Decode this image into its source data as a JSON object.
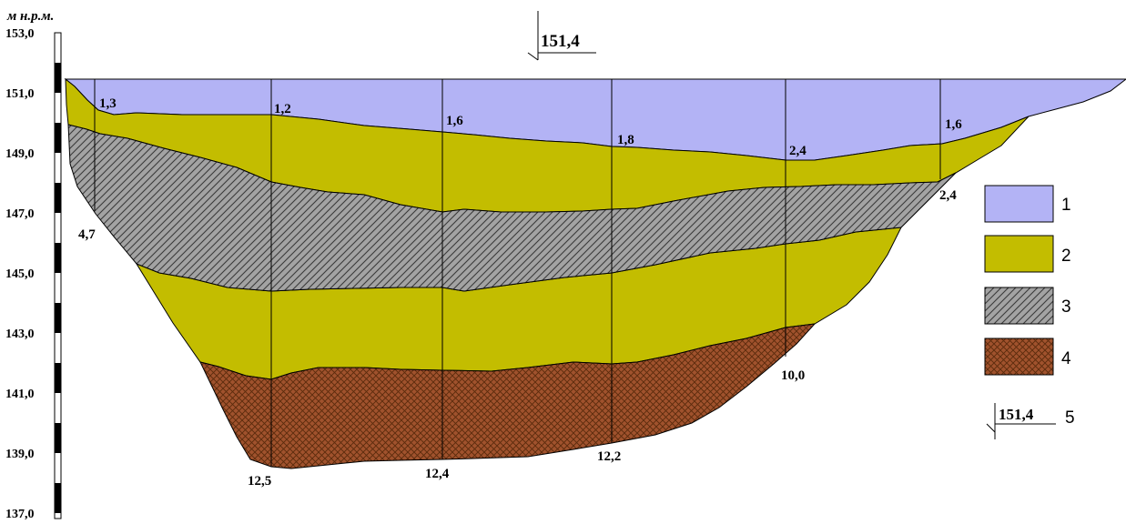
{
  "axis": {
    "unit": "м н.р.м.",
    "ticks": [
      "153,0",
      "151,0",
      "149,0",
      "147,0",
      "145,0",
      "143,0",
      "141,0",
      "139,0",
      "137,0"
    ]
  },
  "water_level": {
    "label": "151,4"
  },
  "verticals": [
    {
      "top_label": "1,3",
      "bottom_label": "4,7"
    },
    {
      "top_label": "1,2",
      "bottom_label": "12,5"
    },
    {
      "top_label": "1,6",
      "bottom_label": "12,4"
    },
    {
      "top_label": "1,8",
      "bottom_label": "12,2"
    },
    {
      "top_label": "2,4",
      "bottom_label": "10,0"
    },
    {
      "top_label": "1,6",
      "bottom_label": "2,4"
    }
  ],
  "legend": [
    {
      "num": "1",
      "color": "#b3b3f5",
      "pattern": "solid"
    },
    {
      "num": "2",
      "color": "#c3bd00",
      "pattern": "solid"
    },
    {
      "num": "3",
      "color": "#a3a3a3",
      "pattern": "diagonal-hatch"
    },
    {
      "num": "4",
      "color": "#a0522d",
      "pattern": "crosshatch"
    },
    {
      "num": "5",
      "label": "151,4",
      "pattern": "water-level-symbol"
    }
  ]
}
